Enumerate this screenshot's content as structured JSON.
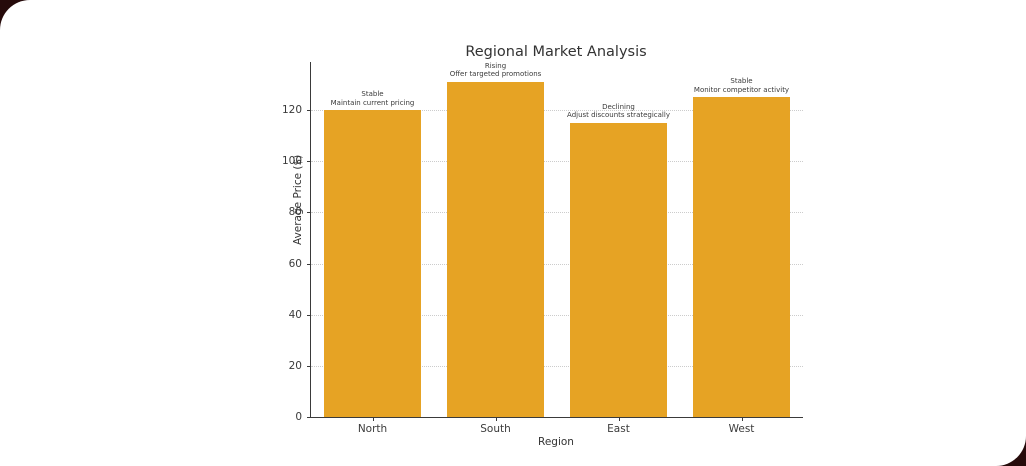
{
  "window": {
    "background_color": "#ffffff",
    "desktop_corner_color": "#260b0b"
  },
  "chart_data": {
    "type": "bar",
    "title": "Regional Market Analysis",
    "xlabel": "Region",
    "ylabel": "Average Price ($)",
    "categories": [
      "North",
      "South",
      "East",
      "West"
    ],
    "values": [
      120,
      131,
      115,
      125
    ],
    "annotations": [
      {
        "trend": "Stable",
        "recommendation": "Maintain current pricing"
      },
      {
        "trend": "Rising",
        "recommendation": "Offer targeted promotions"
      },
      {
        "trend": "Declining",
        "recommendation": "Adjust discounts strategically"
      },
      {
        "trend": "Stable",
        "recommendation": "Monitor competitor activity"
      }
    ],
    "yticks": [
      0,
      20,
      40,
      60,
      80,
      100,
      120
    ],
    "ylim": [
      0,
      138.8
    ],
    "bar_color": "#E6A324",
    "grid": "horizontal dotted",
    "legend_position": "none"
  }
}
